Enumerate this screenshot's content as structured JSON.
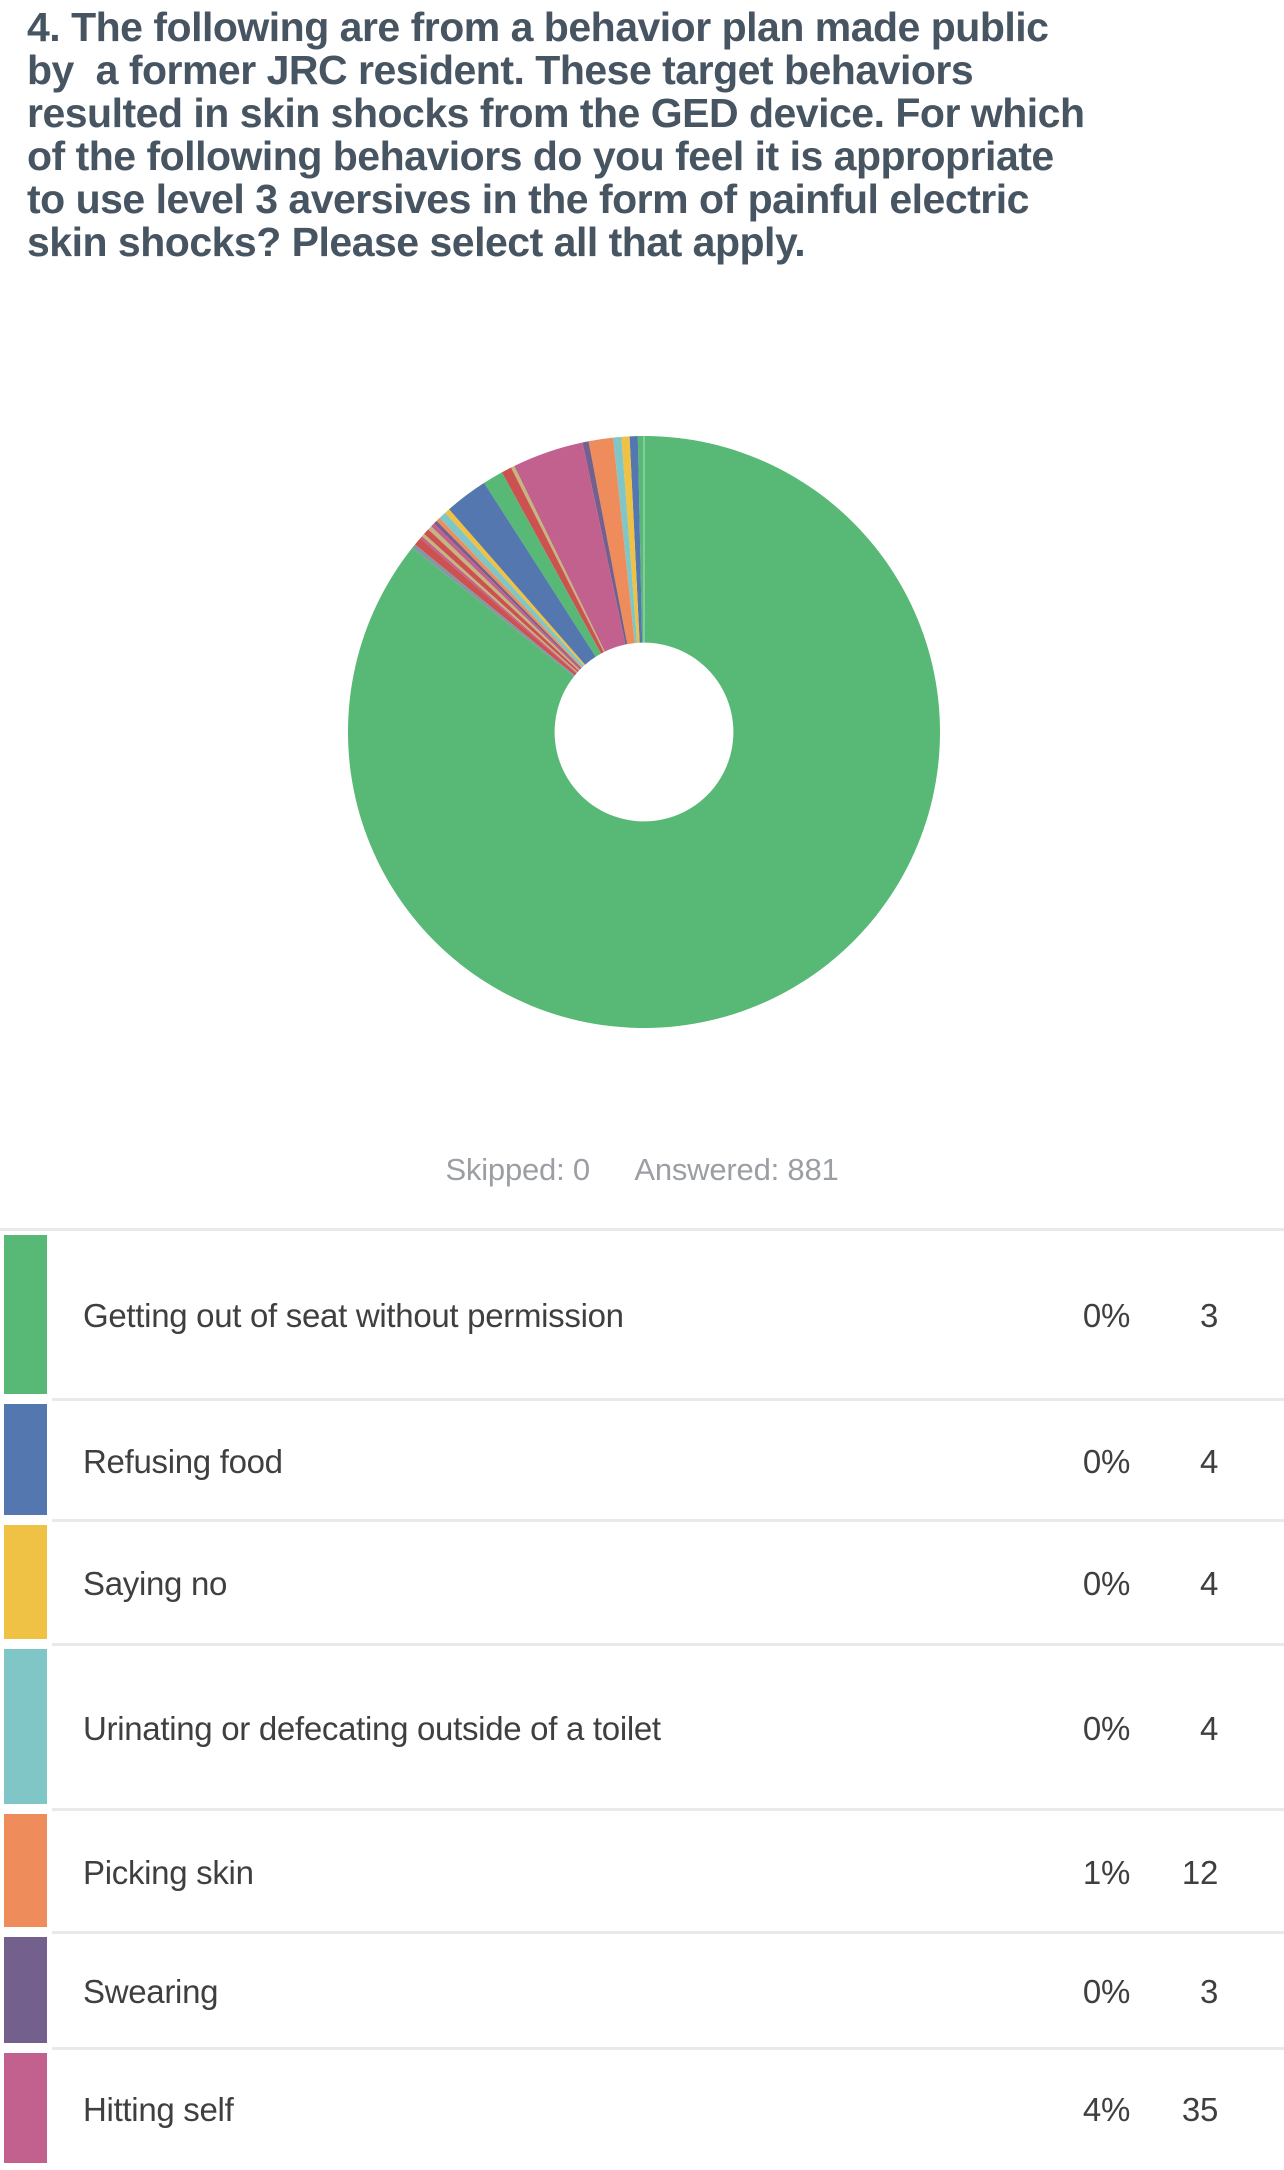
{
  "question": {
    "lines": [
      "4. The following are from a behavior plan made public",
      "by  a former JRC resident. These target behaviors",
      "resulted in skin shocks from the GED device. For which",
      "of the following behaviors do you feel it is appropriate",
      "to use level 3 aversives in the form of painful electric",
      "skin shocks? Please select all that apply."
    ]
  },
  "summary": {
    "skipped": "Skipped: 0",
    "answered": "Answered: 881"
  },
  "colors": {
    "green": "#57B975",
    "blue": "#5577B0",
    "yellow": "#EFC145",
    "teal": "#80C6C6",
    "orange": "#EE8D5B",
    "purple": "#73608D",
    "magenta": "#C2608E",
    "red": "#CC5252",
    "tan": "#C4B67D",
    "gray": "#8696A2",
    "title_text": "#475461",
    "body_text": "#3F3F3F",
    "muted_text": "#9B9FA4",
    "divider": "#E9E9E9"
  },
  "chart_data": {
    "type": "pie",
    "subtype": "donut",
    "start": "top",
    "direction": "counterclockwise",
    "hole_ratio": 0.3,
    "answered": 881,
    "skipped": 0,
    "categories": [
      "Getting out of seat without permission",
      "Refusing food",
      "Saying no",
      "Urinating or defecating outside of a toilet",
      "Picking skin",
      "Swearing",
      "Hitting self"
    ],
    "values": [
      3,
      4,
      4,
      4,
      12,
      3,
      35
    ],
    "percent_labels": [
      "0%",
      "0%",
      "0%",
      "0%",
      "1%",
      "0%",
      "4%"
    ],
    "segments": [
      {
        "color": "green",
        "deg": 1.2,
        "label": "Getting out of seat without permission"
      },
      {
        "color": "blue",
        "deg": 1.6,
        "label": "Refusing food"
      },
      {
        "color": "yellow",
        "deg": 1.6,
        "label": "Saying no"
      },
      {
        "color": "teal",
        "deg": 1.6,
        "label": "Urinating or defecating outside of a toilet"
      },
      {
        "color": "orange",
        "deg": 4.8,
        "label": "Picking skin"
      },
      {
        "color": "purple",
        "deg": 1.2,
        "label": "Swearing"
      },
      {
        "color": "magenta",
        "deg": 14.0,
        "label": "Hitting self"
      },
      {
        "color": "tan",
        "deg": 0.7,
        "label": ""
      },
      {
        "color": "red",
        "deg": 2.0,
        "label": ""
      },
      {
        "color": "green",
        "deg": 4.0,
        "label": ""
      },
      {
        "color": "blue",
        "deg": 8.5,
        "label": ""
      },
      {
        "color": "yellow",
        "deg": 1.0,
        "label": ""
      },
      {
        "color": "teal",
        "deg": 1.5,
        "label": ""
      },
      {
        "color": "orange",
        "deg": 0.8,
        "label": ""
      },
      {
        "color": "purple",
        "deg": 0.7,
        "label": ""
      },
      {
        "color": "magenta",
        "deg": 0.8,
        "label": ""
      },
      {
        "color": "tan",
        "deg": 0.8,
        "label": ""
      },
      {
        "color": "red",
        "deg": 1.2,
        "label": ""
      },
      {
        "color": "tan",
        "deg": 0.6,
        "label": ""
      },
      {
        "color": "magenta",
        "deg": 0.5,
        "label": ""
      },
      {
        "color": "red",
        "deg": 1.6,
        "label": ""
      },
      {
        "color": "gray",
        "deg": 0.8,
        "label": ""
      },
      {
        "color": "green",
        "deg": 308.5,
        "label": ""
      }
    ]
  },
  "table": {
    "rows": [
      {
        "label": "Getting out of seat without permission",
        "percent": "0%",
        "count": "3",
        "color_key": "green"
      },
      {
        "label": "Refusing food",
        "percent": "0%",
        "count": "4",
        "color_key": "blue"
      },
      {
        "label": "Saying no",
        "percent": "0%",
        "count": "4",
        "color_key": "yellow"
      },
      {
        "label": "Urinating or defecating outside of a toilet",
        "percent": "0%",
        "count": "4",
        "color_key": "teal"
      },
      {
        "label": "Picking skin",
        "percent": "1%",
        "count": "12",
        "color_key": "orange"
      },
      {
        "label": "Swearing",
        "percent": "0%",
        "count": "3",
        "color_key": "purple"
      },
      {
        "label": "Hitting self",
        "percent": "4%",
        "count": "35",
        "color_key": "magenta"
      }
    ]
  }
}
